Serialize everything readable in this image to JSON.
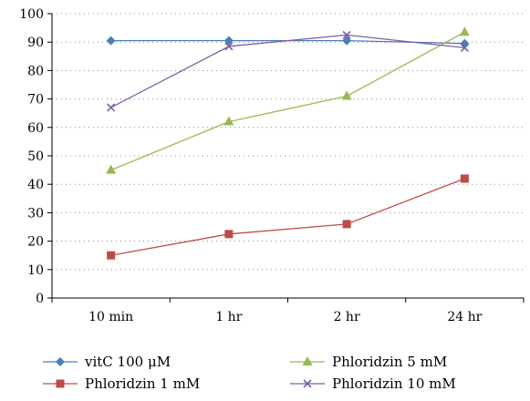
{
  "chart_data": {
    "type": "line",
    "categories": [
      "10 min",
      "1 hr",
      "2 hr",
      "24 hr"
    ],
    "ylim": [
      0,
      100
    ],
    "y_ticks": [
      0,
      10,
      20,
      30,
      40,
      50,
      60,
      70,
      80,
      90,
      100
    ],
    "grid": "horizontal-dotted",
    "legend_position": "bottom",
    "series": [
      {
        "name": "vitC 100 μM",
        "values": [
          90.5,
          90.5,
          90.5,
          89.5
        ],
        "color": "#4a7ebb",
        "marker": "diamond"
      },
      {
        "name": "Phloridzin 1 mM",
        "values": [
          15,
          22.5,
          26,
          42
        ],
        "color": "#be4b48",
        "marker": "square"
      },
      {
        "name": "Phloridzin 5 mM",
        "values": [
          45,
          62,
          71,
          93.5
        ],
        "color": "#98b954",
        "marker": "triangle"
      },
      {
        "name": "Phloridzin 10 mM",
        "values": [
          67,
          88.5,
          92.5,
          88
        ],
        "color": "#7d60a0",
        "marker": "x"
      }
    ]
  }
}
